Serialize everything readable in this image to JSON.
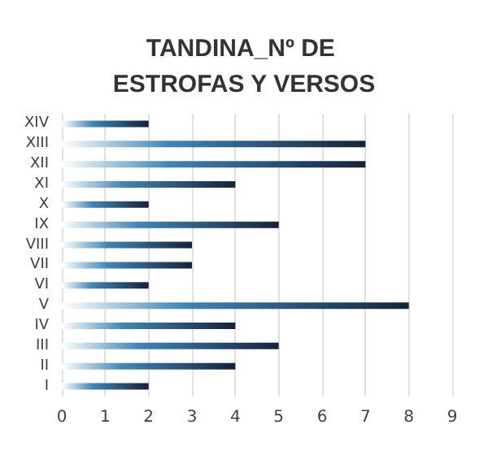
{
  "chart_data": {
    "type": "bar",
    "orientation": "horizontal",
    "title": "TANDINA_Nº DE ESTROFAS Y VERSOS",
    "categories": [
      "XIV",
      "XIII",
      "XII",
      "XI",
      "X",
      "IX",
      "VIII",
      "VII",
      "VI",
      "V",
      "IV",
      "III",
      "II",
      "I"
    ],
    "values": [
      2,
      7,
      7,
      4,
      2,
      5,
      3,
      3,
      2,
      8,
      4,
      5,
      4,
      2
    ],
    "color": "#15223a",
    "xlim": [
      0,
      9
    ],
    "xticks": [
      0,
      1,
      2,
      3,
      4,
      5,
      6,
      7,
      8,
      9
    ],
    "grid": "x"
  }
}
